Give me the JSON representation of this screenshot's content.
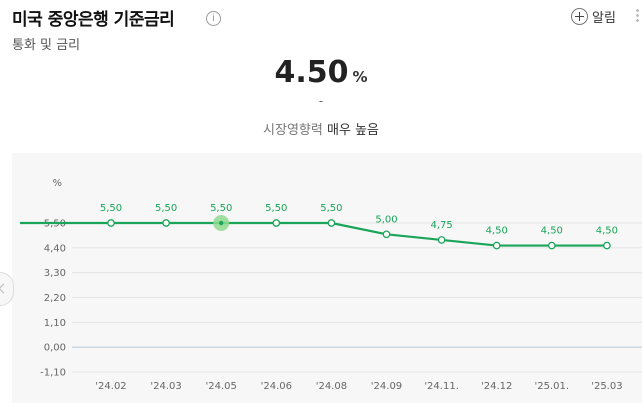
{
  "header": {
    "title": "미국 중앙은행 기준금리",
    "info_glyph": "i",
    "subtitle": "통화 및 금리",
    "alarm_label": "알림"
  },
  "summary": {
    "rate": "4.50",
    "unit": "%",
    "change": "-",
    "impact_prefix": "시장영향력",
    "impact_level": "매우 높음"
  },
  "colors": {
    "line": "#1aa559",
    "highlight": "#8fd98f",
    "grid": "#e4e4e4",
    "zero_line": "#b8c8d8"
  },
  "chart_data": {
    "type": "line",
    "ylabel": "%",
    "ylim": [
      -1.1,
      5.5
    ],
    "yticks": [
      "5,50",
      "4,40",
      "3,30",
      "2,20",
      "1,10",
      "0,00",
      "-1,10"
    ],
    "ytick_values": [
      5.5,
      4.4,
      3.3,
      2.2,
      1.1,
      0.0,
      -1.1
    ],
    "categories": [
      "'24.02",
      "'24.03",
      "'24.05",
      "'24.06",
      "'24.08",
      "'24.09",
      "'24.11.",
      "'24.12",
      "'25.01.",
      "'25.03"
    ],
    "series": [
      {
        "values": [
          5.5,
          5.5,
          5.5,
          5.5,
          5.5,
          5.0,
          4.75,
          4.5,
          4.5,
          4.5
        ],
        "labels": [
          "5,50",
          "5,50",
          "5,50",
          "5,50",
          "5,50",
          "5,00",
          "4,75",
          "4,50",
          "4,50",
          "4,50"
        ]
      }
    ],
    "highlight_index": 2,
    "grid": true
  }
}
